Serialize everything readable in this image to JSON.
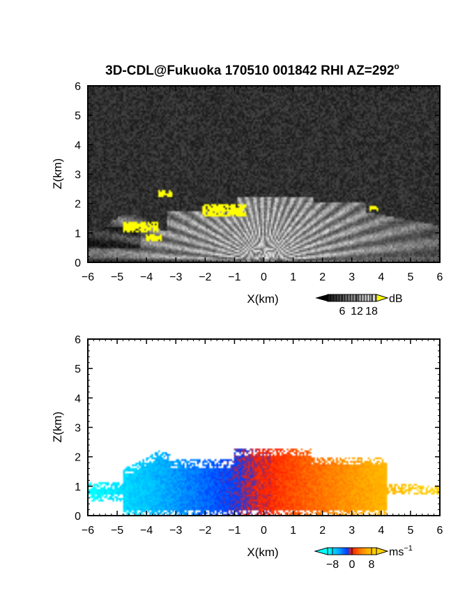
{
  "figure": {
    "title": "3D-CDL@Fukuoka 170510 001842 RHI AZ=292",
    "title_degree_mark": "o"
  },
  "chart_data": [
    {
      "type": "heatmap",
      "name": "snr",
      "xlabel": "X(km)",
      "ylabel": "Z(km)",
      "xlim": [
        -6,
        6
      ],
      "ylim": [
        0,
        6
      ],
      "xticks": [
        -6,
        -5,
        -4,
        -3,
        -2,
        -1,
        0,
        1,
        2,
        3,
        4,
        5,
        6
      ],
      "yticks": [
        0,
        1,
        2,
        3,
        4,
        5,
        6
      ],
      "colormap": "grayscale with yellow above 18 dB",
      "colorbar": {
        "unit": "dB",
        "ticks": [
          6,
          12,
          18
        ],
        "range": [
          0,
          20
        ],
        "extend": "both"
      },
      "colors": {
        "background_noise": "#2a2a2a",
        "bright": "#e6e6e6",
        "saturated": "#ffff00"
      },
      "saturated_regions": [
        {
          "x": [
            -2.1,
            -0.6
          ],
          "z": [
            1.55,
            1.95
          ]
        },
        {
          "x": [
            -3.6,
            -3.1
          ],
          "z": [
            2.2,
            2.45
          ]
        },
        {
          "x": [
            -4.8,
            -3.6
          ],
          "z": [
            1.0,
            1.35
          ]
        },
        {
          "x": [
            -4.0,
            -3.5
          ],
          "z": [
            0.75,
            0.95
          ]
        },
        {
          "x": [
            3.6,
            3.9
          ],
          "z": [
            1.75,
            1.9
          ]
        }
      ]
    },
    {
      "type": "heatmap",
      "name": "doppler-velocity",
      "xlabel": "X(km)",
      "ylabel": "Z(km)",
      "xlim": [
        -6,
        6
      ],
      "ylim": [
        0,
        6
      ],
      "xticks": [
        -6,
        -5,
        -4,
        -3,
        -2,
        -1,
        0,
        1,
        2,
        3,
        4,
        5,
        6
      ],
      "yticks": [
        0,
        1,
        2,
        3,
        4,
        5,
        6
      ],
      "colormap": "cyan-blue-red-yellow",
      "colorbar": {
        "unit": "ms",
        "unit_exponent": "−1",
        "ticks": [
          "−8",
          "0",
          "8"
        ],
        "range": [
          -10,
          10
        ],
        "extend": "both"
      },
      "colors": {
        "neg_far": "#00ffff",
        "neg": "#0050ff",
        "zero": "#ff2000",
        "pos": "#ff8000",
        "pos_far": "#ffd000"
      },
      "echo_extent": {
        "x": [
          -6,
          6
        ],
        "z": [
          0,
          2.4
        ]
      }
    }
  ]
}
